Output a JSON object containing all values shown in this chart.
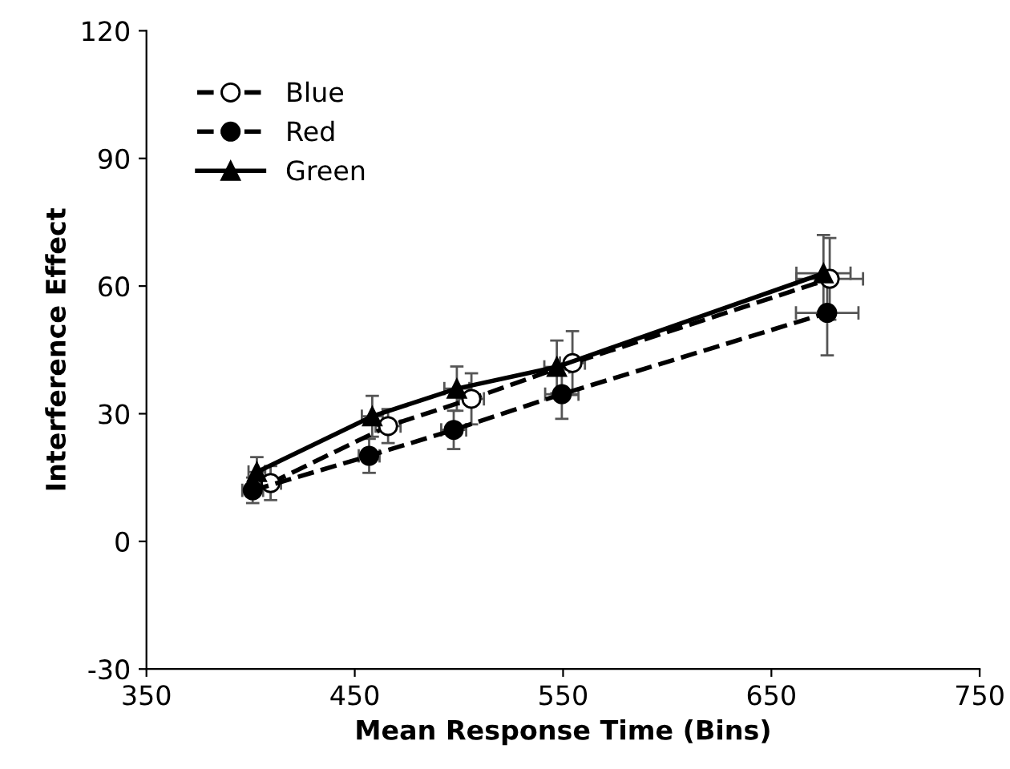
{
  "chart_data": {
    "type": "line",
    "xlabel": "Mean Response Time (Bins)",
    "ylabel": "Interference Effect",
    "xlim": [
      350,
      750
    ],
    "xticks": [
      350,
      450,
      550,
      650,
      750
    ],
    "ylim": [
      -30,
      120
    ],
    "yticks": [
      -30,
      0,
      30,
      60,
      90,
      120
    ],
    "grid": false,
    "legend": "top left",
    "series": [
      {
        "name": "Blue",
        "color": "#000000",
        "marker": "circle",
        "line_style": "dashed",
        "x": [
          409.6,
          466,
          506,
          554.5,
          678
        ],
        "values": [
          13.7,
          27.1,
          33.5,
          41.9,
          61.7
        ],
        "errors": [
          4,
          4,
          6,
          7.5,
          9.6
        ],
        "xerrors": [
          5,
          6,
          6,
          6,
          16
        ]
      },
      {
        "name": "Red",
        "color": "#000000",
        "marker": "circle",
        "line_style": "dashed",
        "x": [
          401,
          456.9,
          497.5,
          549.4,
          676.8
        ],
        "values": [
          12,
          20.1,
          26.2,
          34.6,
          53.7
        ],
        "errors": [
          3,
          4,
          4.5,
          5.8,
          10
        ],
        "xerrors": [
          5,
          5,
          6,
          8,
          15
        ]
      },
      {
        "name": "Green",
        "color": "#000000",
        "marker": "triangle",
        "line_style": "solid",
        "x": [
          403,
          458.4,
          499,
          547,
          675
        ],
        "values": [
          16.3,
          29.4,
          35.9,
          41,
          63
        ],
        "errors": [
          3.5,
          4.8,
          5.2,
          6.2,
          9
        ],
        "xerrors": [
          4,
          5,
          6,
          6,
          13
        ]
      }
    ]
  }
}
